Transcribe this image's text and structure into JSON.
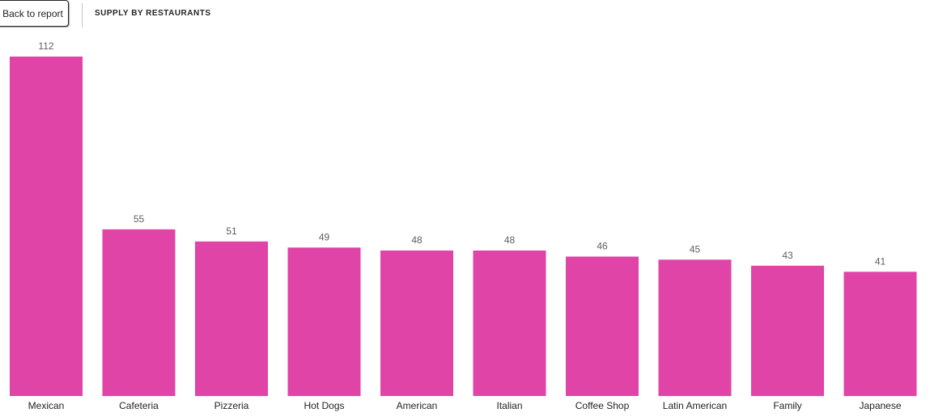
{
  "header": {
    "back_label": "Back to report",
    "title": "SUPPLY BY RESTAURANTS"
  },
  "colors": {
    "bar": "#e044a7"
  },
  "chart_data": {
    "type": "bar",
    "title": "SUPPLY BY RESTAURANTS",
    "xlabel": "",
    "ylabel": "",
    "categories": [
      "Mexican",
      "Cafeteria",
      "Pizzeria",
      "Hot Dogs",
      "American",
      "Italian",
      "Coffee Shop",
      "Latin American",
      "Family",
      "Japanese"
    ],
    "values": [
      112,
      55,
      51,
      49,
      48,
      48,
      46,
      45,
      43,
      41
    ],
    "ylim": [
      0,
      112
    ],
    "grid": false,
    "legend": "none",
    "data_labels": true
  }
}
